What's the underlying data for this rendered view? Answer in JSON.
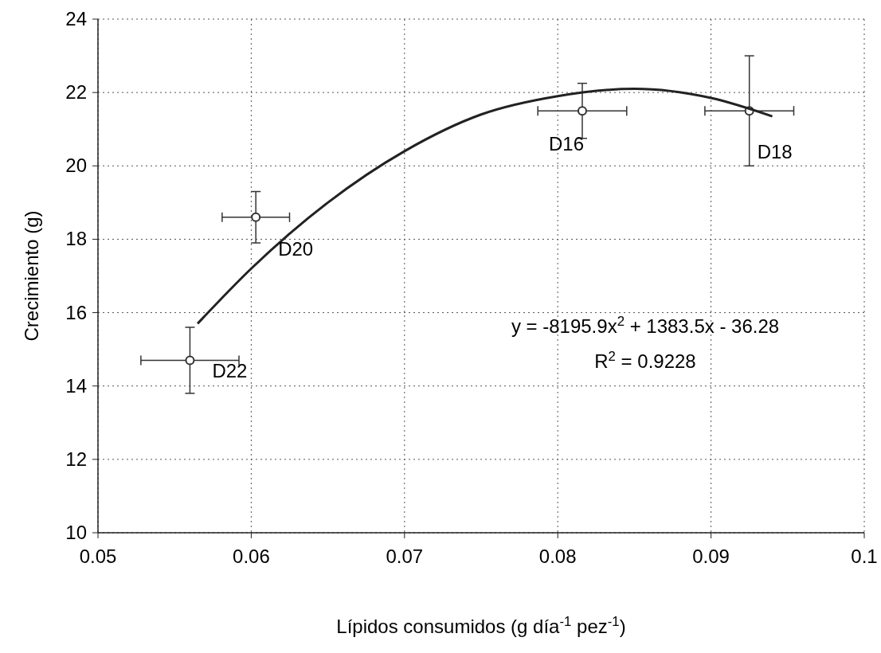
{
  "chart_data": {
    "type": "scatter",
    "xlabel": "Lípidos  consumidos (g día$^{-1}$ pez$^{-1}$)",
    "ylabel": "Crecimiento (g)",
    "xlim": [
      0.05,
      0.1
    ],
    "xticks": [
      0.05,
      0.06,
      0.07,
      0.08,
      0.09,
      0.1
    ],
    "ylim": [
      10,
      24
    ],
    "yticks": [
      10,
      12,
      14,
      16,
      18,
      20,
      22,
      24
    ],
    "grid": true,
    "marker": "circle",
    "series": [
      {
        "color": "#333333",
        "x": [
          0.056,
          0.0603,
          0.0816,
          0.0925
        ],
        "values": [
          14.7,
          18.6,
          21.5,
          21.5
        ],
        "errors": [
          0.9,
          0.7,
          0.75,
          1.5
        ],
        "xerrors": [
          0.0032,
          0.0022,
          0.0029,
          0.0029
        ]
      },
      {
        "type": "line",
        "color": "#222222",
        "marker": "none",
        "x": [
          0.0565,
          0.06,
          0.065,
          0.07,
          0.075,
          0.08,
          0.085,
          0.09,
          0.094
        ],
        "values": [
          15.7,
          17.2,
          19.0,
          20.4,
          21.4,
          21.9,
          22.1,
          21.85,
          21.35
        ]
      }
    ],
    "annotations": [
      {
        "text": "D22",
        "x": 0.056,
        "y": 14.7
      },
      {
        "text": "D20",
        "x": 0.0603,
        "y": 18.6
      },
      {
        "text": "D16",
        "x": 0.0816,
        "y": 21.5
      },
      {
        "text": "D18",
        "x": 0.0925,
        "y": 21.5
      },
      "y = -8195.9x$^{2}$ + 1383.5x - 36.28",
      "R$^{2}$ = 0.9228"
    ]
  }
}
